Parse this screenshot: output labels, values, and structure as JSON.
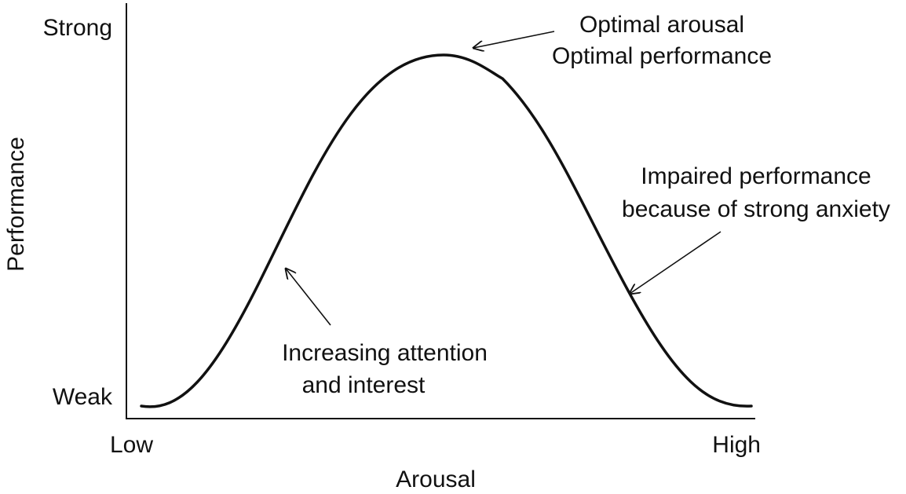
{
  "axes": {
    "y_label": "Performance",
    "y_top": "Strong",
    "y_bottom": "Weak",
    "x_label": "Arousal",
    "x_left": "Low",
    "x_right": "High"
  },
  "annotations": {
    "peak_line1": "Optimal arousal",
    "peak_line2": "Optimal performance",
    "right_line1": "Impaired performance",
    "right_line2": "because of strong anxiety",
    "left_line1": "Increasing attention",
    "left_line2": "and interest"
  },
  "colors": {
    "ink": "#111111"
  }
}
